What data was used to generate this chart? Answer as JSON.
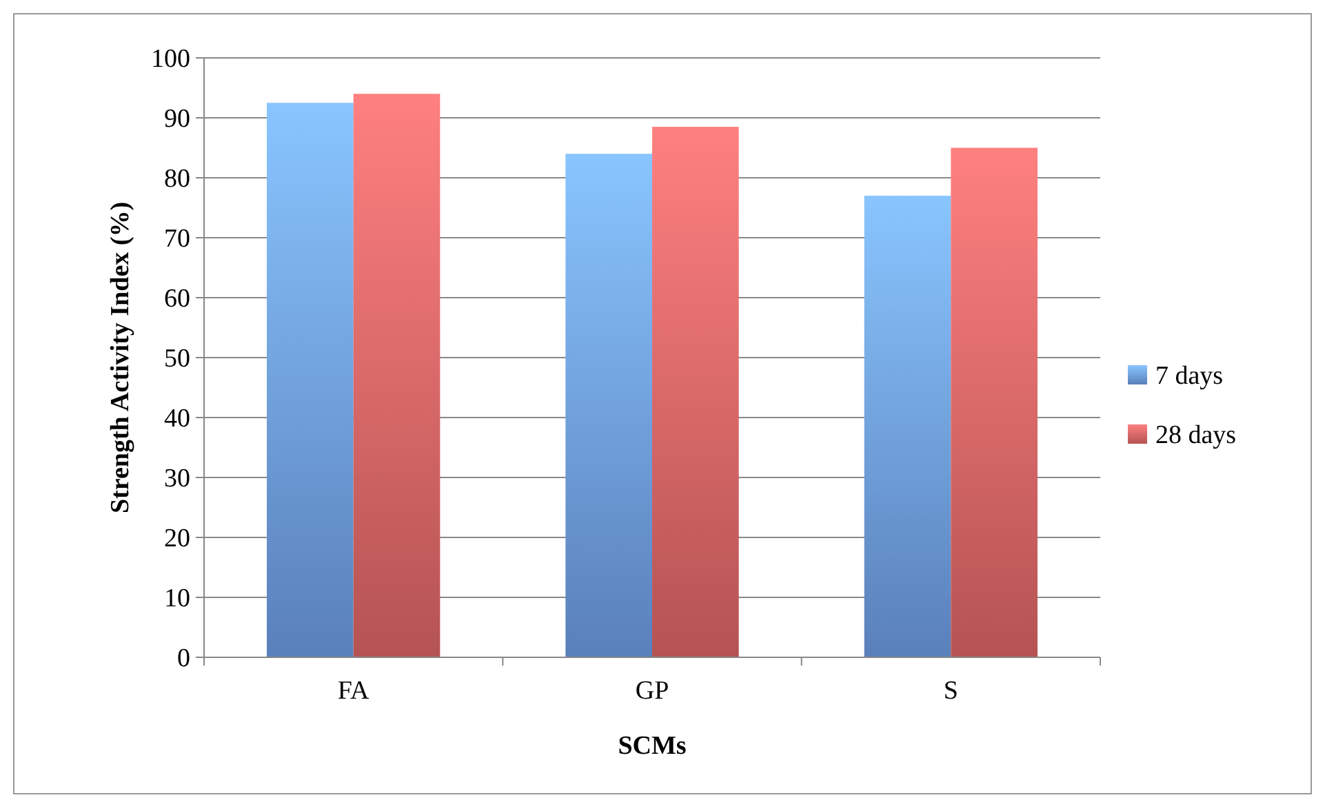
{
  "chart_data": {
    "type": "bar",
    "xlabel": "SCMs",
    "ylabel": "Strength Activity Index (%)",
    "categories": [
      "FA",
      "GP",
      "S"
    ],
    "series": [
      {
        "name": "7 days",
        "color": "#6f9fe6",
        "values": [
          92.5,
          84,
          77
        ]
      },
      {
        "name": "28 days",
        "color": "#e06767",
        "values": [
          94,
          88.5,
          85
        ]
      }
    ],
    "ylim": [
      0,
      100
    ],
    "yticks": [
      0,
      10,
      20,
      30,
      40,
      50,
      60,
      70,
      80,
      90,
      100
    ],
    "grid": "y",
    "legend": "right"
  }
}
